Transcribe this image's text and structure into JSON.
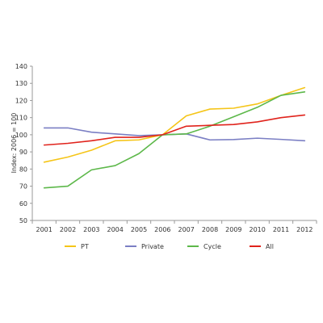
{
  "chart_data": {
    "type": "line",
    "ylabel": "Index: 2006 = 100",
    "ylim": [
      50,
      140
    ],
    "yticks": [
      50,
      60,
      70,
      80,
      90,
      100,
      110,
      120,
      130,
      140
    ],
    "categories": [
      "2001",
      "2002",
      "2003",
      "2004",
      "2005",
      "2006",
      "2007",
      "2008",
      "2009",
      "2010",
      "2011",
      "2012"
    ],
    "grid": false,
    "legend_position": "bottom",
    "series": [
      {
        "name": "PT",
        "color": "#f5c518",
        "values": [
          84,
          87,
          91,
          96.5,
          97,
          100,
          111,
          115,
          115.5,
          118,
          123,
          127.5
        ]
      },
      {
        "name": "Private",
        "color": "#7b7fc4",
        "values": [
          104,
          104,
          101.5,
          100.5,
          99.5,
          100,
          100.5,
          97,
          97.2,
          98,
          97.3,
          96.5
        ]
      },
      {
        "name": "Cycle",
        "color": "#5db84a",
        "values": [
          69,
          70,
          79.5,
          82,
          89,
          100,
          100.5,
          105,
          110.5,
          116,
          123,
          125
        ]
      },
      {
        "name": "All",
        "color": "#e0231c",
        "values": [
          94,
          95,
          96.5,
          98.5,
          98.5,
          100,
          105,
          105.5,
          106,
          107.5,
          110,
          111.5
        ]
      }
    ]
  }
}
